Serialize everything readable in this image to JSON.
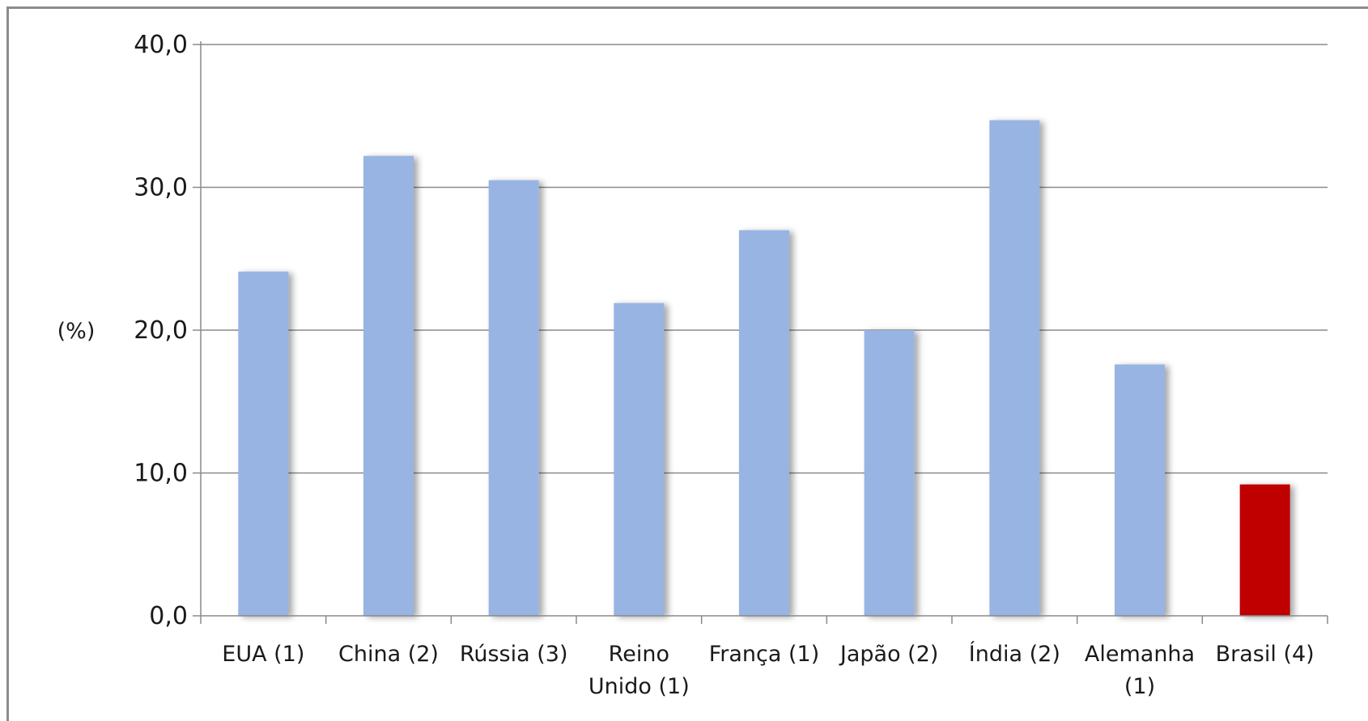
{
  "chart_data": {
    "type": "bar",
    "title": "",
    "xlabel": "",
    "ylabel": "(%)",
    "ylim": [
      0,
      40
    ],
    "yticks": [
      "0,0",
      "10,0",
      "20,0",
      "30,0",
      "40,0"
    ],
    "grid": true,
    "legend": "none",
    "categories": [
      [
        "EUA (1)"
      ],
      [
        "China (2)"
      ],
      [
        "Rússia (3)"
      ],
      [
        "Reino",
        "Unido (1)"
      ],
      [
        "França (1)"
      ],
      [
        "Japão (2)"
      ],
      [
        "Índia  (2)"
      ],
      [
        "Alemanha",
        "(1)"
      ],
      [
        "Brasil (4)"
      ]
    ],
    "values": [
      24.1,
      32.2,
      30.5,
      21.9,
      27.0,
      20.0,
      34.7,
      17.6,
      9.2
    ],
    "colors": [
      "#98b4e3",
      "#98b4e3",
      "#98b4e3",
      "#98b4e3",
      "#98b4e3",
      "#98b4e3",
      "#98b4e3",
      "#98b4e3",
      "#c00000"
    ]
  }
}
